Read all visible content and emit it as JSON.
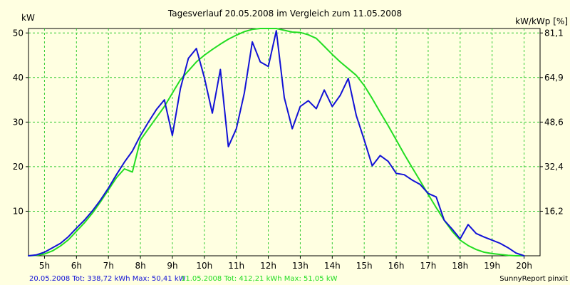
{
  "chart_data": {
    "type": "line",
    "title": "Tagesverlauf 20.05.2008 im Vergleich zum 11.05.2008",
    "ylabel_left": "kW",
    "ylabel_right": "kW/kWp [%]",
    "xlim": [
      4.5,
      20.5
    ],
    "ylim": [
      0,
      51
    ],
    "grid": true,
    "x_ticks": [
      5,
      6,
      7,
      8,
      9,
      10,
      11,
      12,
      13,
      14,
      15,
      16,
      17,
      18,
      19,
      20
    ],
    "x_tick_labels": [
      "5h",
      "6h",
      "7h",
      "8h",
      "9h",
      "10h",
      "11h",
      "12h",
      "13h",
      "14h",
      "15h",
      "16h",
      "17h",
      "18h",
      "19h",
      "20h"
    ],
    "y_left_ticks": [
      10,
      20,
      30,
      40,
      50
    ],
    "y_left_tick_labels": [
      "10",
      "20",
      "30",
      "40",
      "50"
    ],
    "y_right_ticks": [
      10,
      20,
      30,
      40,
      50
    ],
    "y_right_tick_labels": [
      "16,2",
      "32,4",
      "48,6",
      "64,9",
      "81,1"
    ],
    "colors": {
      "background": "#ffffe1",
      "plot_background": "#ffffe1",
      "grid": "#33cc33",
      "series1": "#1212d6",
      "series2": "#22dd22"
    },
    "series": [
      {
        "name": "20.05.2008",
        "color": "#1212d6",
        "x": [
          4.5,
          4.75,
          5,
          5.25,
          5.5,
          5.75,
          6,
          6.25,
          6.5,
          6.75,
          7,
          7.25,
          7.5,
          7.75,
          8,
          8.25,
          8.5,
          8.75,
          9,
          9.25,
          9.5,
          9.75,
          10,
          10.25,
          10.5,
          10.75,
          11,
          11.25,
          11.5,
          11.75,
          12,
          12.25,
          12.5,
          12.75,
          13,
          13.25,
          13.5,
          13.75,
          14,
          14.25,
          14.5,
          14.75,
          15,
          15.25,
          15.5,
          15.75,
          16,
          16.25,
          16.5,
          16.75,
          17,
          17.25,
          17.5,
          17.75,
          18,
          18.25,
          18.5,
          18.75,
          19,
          19.25,
          19.5,
          19.75,
          20
        ],
        "values": [
          0,
          0.2,
          0.8,
          1.8,
          2.8,
          4.3,
          6.2,
          8,
          10.1,
          12.5,
          15.2,
          18.2,
          21,
          23.5,
          27,
          30,
          32.8,
          35,
          27,
          37.5,
          44.3,
          46.5,
          40,
          32,
          41.8,
          24.5,
          28.5,
          36.5,
          48,
          43.5,
          42.5,
          50.5,
          35.5,
          28.5,
          33.5,
          34.8,
          33,
          37.2,
          33.5,
          36,
          39.8,
          31.5,
          26,
          20.2,
          22.5,
          21.2,
          18.5,
          18.2,
          17,
          16,
          14,
          13.2,
          8,
          6,
          3.8,
          7,
          5,
          4.2,
          3.5,
          2.8,
          1.8,
          0.6,
          0
        ]
      },
      {
        "name": "11.05.2008",
        "color": "#22dd22",
        "x": [
          4.5,
          4.75,
          5,
          5.25,
          5.5,
          5.75,
          6,
          6.25,
          6.5,
          6.75,
          7,
          7.25,
          7.5,
          7.75,
          8,
          8.25,
          8.5,
          8.75,
          9,
          9.25,
          9.5,
          9.75,
          10,
          10.25,
          10.5,
          10.75,
          11,
          11.25,
          11.5,
          11.75,
          12,
          12.25,
          12.5,
          12.75,
          13,
          13.25,
          13.5,
          13.75,
          14,
          14.25,
          14.5,
          14.75,
          15,
          15.25,
          15.5,
          15.75,
          16,
          16.25,
          16.5,
          16.75,
          17,
          17.25,
          17.5,
          17.75,
          18,
          18.25,
          18.5,
          18.75,
          19,
          19.25,
          19.5,
          19.75,
          20
        ],
        "values": [
          0,
          0.1,
          0.4,
          1.1,
          2.2,
          3.6,
          5.5,
          7.4,
          9.6,
          12.1,
          14.8,
          17.5,
          19.5,
          18.8,
          26,
          28.5,
          31,
          33.5,
          36.5,
          39.5,
          41.5,
          43.5,
          45,
          46.3,
          47.5,
          48.6,
          49.5,
          50.3,
          50.8,
          51,
          51,
          51,
          50.6,
          50.2,
          50.1,
          49.6,
          48.8,
          47,
          45.2,
          43.5,
          42,
          40.5,
          38.2,
          35.3,
          32.2,
          29.2,
          26,
          22.8,
          19.8,
          16.8,
          13.8,
          10.8,
          8,
          5.5,
          3.5,
          2.3,
          1.4,
          0.8,
          0.5,
          0.3,
          0.1,
          0,
          0
        ]
      }
    ],
    "footer": {
      "series1_text": "20.05.2008 Tot: 338,72 kWh Max: 50,41 kW",
      "series2_text": "11.05.2008 Tot: 412,21 kWh Max: 51,05 kW",
      "credit": "SunnyReport pinxit"
    }
  }
}
